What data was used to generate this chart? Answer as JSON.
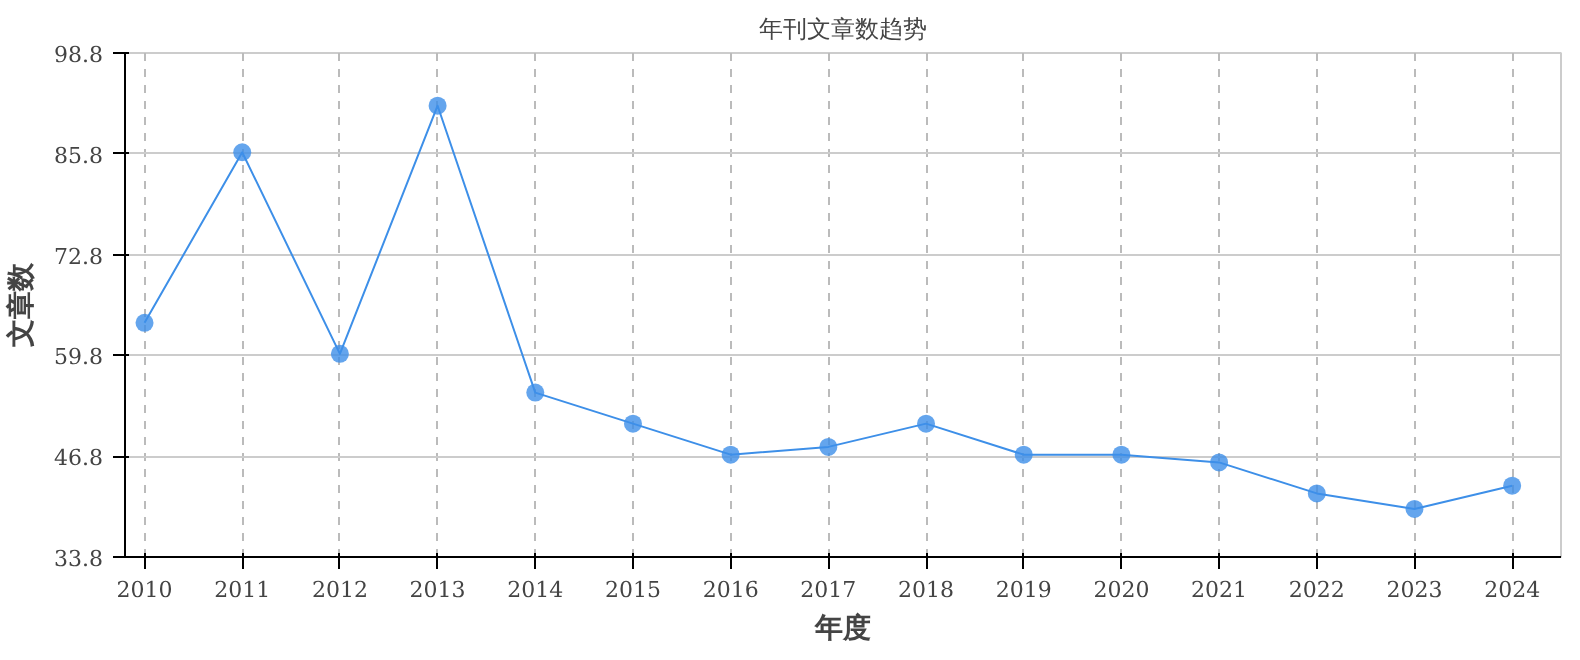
{
  "chart_data": {
    "type": "line",
    "title": "年刊文章数趋势",
    "xlabel": "年度",
    "ylabel": "文章数",
    "categories": [
      "2010",
      "2011",
      "2012",
      "2013",
      "2014",
      "2015",
      "2016",
      "2017",
      "2018",
      "2019",
      "2020",
      "2021",
      "2022",
      "2023",
      "2024"
    ],
    "series": [
      {
        "color": "#3d8fe8",
        "values": [
          64,
          86,
          60,
          92,
          55,
          51,
          47,
          48,
          51,
          47,
          47,
          46,
          42,
          40,
          43
        ]
      }
    ],
    "ylim": [
      33.8,
      98.8
    ],
    "yticks": [
      33.8,
      46.8,
      59.8,
      72.8,
      85.8,
      98.8
    ],
    "grid": true,
    "marker": "circle",
    "line_style": "solid"
  }
}
